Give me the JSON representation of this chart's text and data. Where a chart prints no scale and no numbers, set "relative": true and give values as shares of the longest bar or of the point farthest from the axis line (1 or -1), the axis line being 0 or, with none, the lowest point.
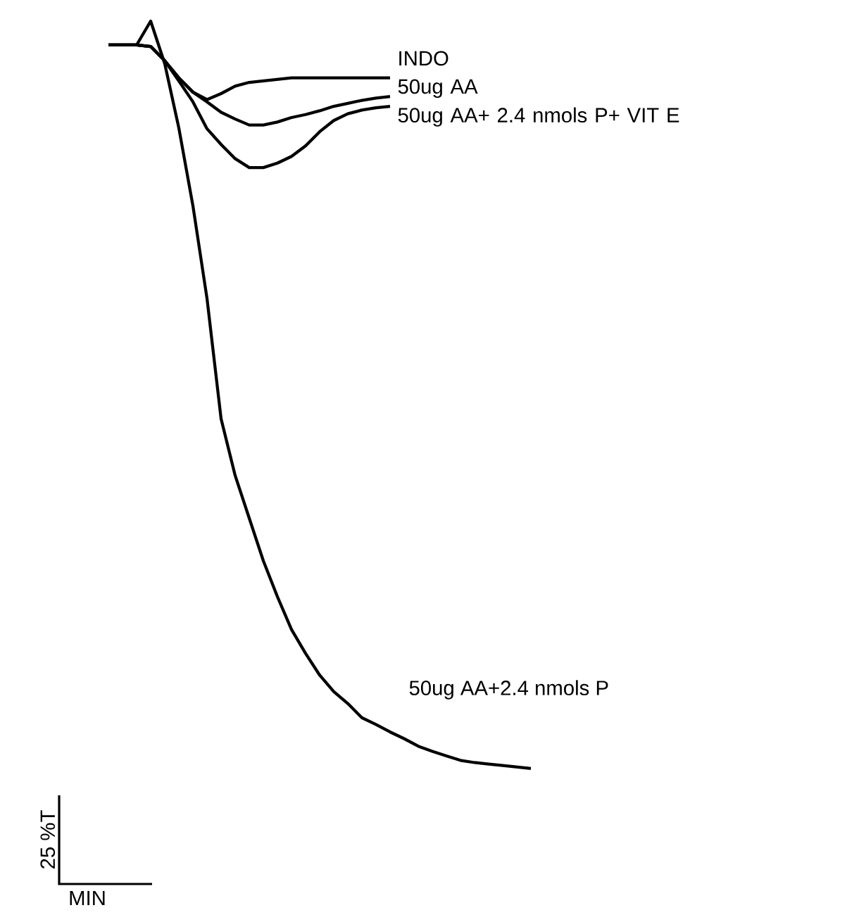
{
  "chart_data": {
    "type": "line",
    "relative": true,
    "annotations": [
      "25 %T",
      "MIN"
    ],
    "marker": "none",
    "line_style": "solid",
    "categories": [
      null,
      null,
      null,
      null,
      null,
      null,
      null,
      null,
      null,
      null,
      null,
      null,
      null,
      null,
      null,
      null,
      null,
      null,
      null,
      null,
      null,
      null,
      null,
      null,
      null,
      null,
      null,
      null,
      null,
      null,
      null
    ],
    "series": [
      {
        "name": "INDO",
        "color": "#000000",
        "values": [
          0.968,
          0.968,
          0.968,
          0.966,
          0.947,
          0.924,
          0.905,
          0.895,
          0.903,
          0.913,
          0.918,
          0.92,
          0.922,
          0.924,
          0.924,
          0.924,
          0.924,
          0.924,
          0.924,
          0.924,
          0.924,
          null,
          null,
          null,
          null,
          null,
          null,
          null,
          null,
          null,
          null
        ]
      },
      {
        "name": "50ug AA",
        "color": "#000000",
        "values": [
          0.968,
          0.968,
          0.968,
          0.966,
          0.947,
          0.924,
          0.905,
          0.892,
          0.878,
          0.869,
          0.861,
          0.861,
          0.865,
          0.871,
          0.875,
          0.88,
          0.886,
          0.89,
          0.894,
          0.897,
          0.899,
          null,
          null,
          null,
          null,
          null,
          null,
          null,
          null,
          null,
          null
        ]
      },
      {
        "name": "50ug AA+ 2.4 nmols P+ VIT E",
        "color": "#000000",
        "values": [
          0.968,
          0.968,
          0.968,
          0.966,
          0.947,
          0.92,
          0.892,
          0.856,
          0.835,
          0.816,
          0.804,
          0.804,
          0.81,
          0.819,
          0.833,
          0.852,
          0.867,
          0.876,
          0.881,
          0.884,
          0.886,
          null,
          null,
          null,
          null,
          null,
          null,
          null,
          null,
          null,
          null
        ]
      },
      {
        "name": "50ug AA+2.4 nmols P",
        "color": "#000000",
        "values": [
          0.968,
          0.968,
          0.968,
          1.0,
          0.943,
          0.857,
          0.753,
          0.629,
          0.468,
          0.392,
          0.335,
          0.278,
          0.23,
          0.186,
          0.154,
          0.125,
          0.103,
          0.087,
          0.068,
          0.059,
          0.049,
          0.04,
          0.03,
          0.023,
          0.017,
          0.011,
          0.008,
          0.006,
          0.004,
          0.002,
          0
        ]
      }
    ]
  }
}
